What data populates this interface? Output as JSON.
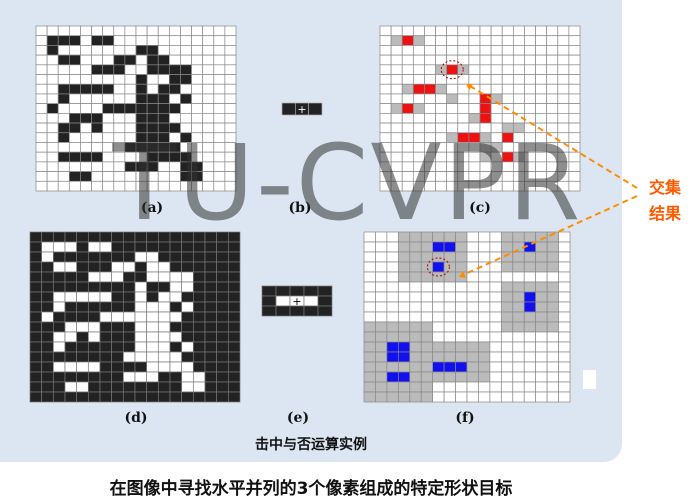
{
  "labels": {
    "a": "(a)",
    "b": "(b)",
    "c": "(c)",
    "d": "(d)",
    "e": "(e)",
    "f": "(f)"
  },
  "caption": "击中与否运算实例",
  "title": "在图像中寻找水平并列的3个像素组成的特定形状目标",
  "annotation": {
    "line1": "交集",
    "line2": "结果"
  },
  "watermark": "TU-CVPR",
  "colors": {
    "foreground": "#222222",
    "hit": "#ee1111",
    "hit_blue": "#1111ee",
    "gray_region": "#bbbbbb",
    "grid": "#888888",
    "accent": "#ff8c00"
  },
  "grids": {
    "a": {
      "cols": 18,
      "rows": 17,
      "fg": [
        [
          1,
          1
        ],
        [
          1,
          2
        ],
        [
          1,
          3
        ],
        [
          1,
          5
        ],
        [
          1,
          6
        ],
        [
          2,
          1
        ],
        [
          2,
          9
        ],
        [
          2,
          10
        ],
        [
          3,
          2
        ],
        [
          3,
          3
        ],
        [
          3,
          7
        ],
        [
          3,
          8
        ],
        [
          3,
          10
        ],
        [
          3,
          11
        ],
        [
          4,
          5
        ],
        [
          4,
          6
        ],
        [
          4,
          7
        ],
        [
          4,
          10
        ],
        [
          4,
          11
        ],
        [
          4,
          12
        ],
        [
          4,
          13
        ],
        [
          5,
          9
        ],
        [
          5,
          12
        ],
        [
          5,
          13
        ],
        [
          6,
          2
        ],
        [
          6,
          3
        ],
        [
          6,
          4
        ],
        [
          6,
          5
        ],
        [
          6,
          6
        ],
        [
          6,
          9
        ],
        [
          6,
          11
        ],
        [
          6,
          12
        ],
        [
          7,
          2
        ],
        [
          7,
          9
        ],
        [
          7,
          10
        ],
        [
          7,
          11
        ],
        [
          7,
          13
        ],
        [
          8,
          1
        ],
        [
          8,
          6
        ],
        [
          8,
          7
        ],
        [
          8,
          8
        ],
        [
          8,
          9
        ],
        [
          8,
          10
        ],
        [
          8,
          11
        ],
        [
          8,
          12
        ],
        [
          9,
          3
        ],
        [
          9,
          4
        ],
        [
          9,
          5
        ],
        [
          9,
          9
        ],
        [
          9,
          10
        ],
        [
          9,
          11
        ],
        [
          10,
          2
        ],
        [
          10,
          3
        ],
        [
          10,
          5
        ],
        [
          10,
          9
        ],
        [
          10,
          10
        ],
        [
          10,
          11
        ],
        [
          10,
          12
        ],
        [
          11,
          2
        ],
        [
          11,
          9
        ],
        [
          11,
          10
        ],
        [
          11,
          11
        ],
        [
          11,
          13
        ],
        [
          12,
          8
        ],
        [
          12,
          9
        ],
        [
          12,
          10
        ],
        [
          12,
          11
        ],
        [
          12,
          12
        ],
        [
          13,
          2
        ],
        [
          13,
          3
        ],
        [
          13,
          4
        ],
        [
          13,
          5
        ],
        [
          13,
          10
        ],
        [
          13,
          11
        ],
        [
          13,
          12
        ],
        [
          13,
          13
        ],
        [
          14,
          8
        ],
        [
          14,
          9
        ],
        [
          14,
          10
        ],
        [
          14,
          13
        ],
        [
          14,
          14
        ],
        [
          15,
          3
        ],
        [
          15,
          4
        ],
        [
          15,
          13
        ],
        [
          15,
          14
        ]
      ]
    },
    "c": {
      "cols": 18,
      "rows": 17,
      "gray": [
        [
          1,
          1
        ],
        [
          1,
          3
        ],
        [
          4,
          5
        ],
        [
          4,
          7
        ],
        [
          6,
          2
        ],
        [
          6,
          5
        ],
        [
          7,
          6
        ],
        [
          7,
          10
        ],
        [
          8,
          1
        ],
        [
          8,
          3
        ],
        [
          9,
          8
        ],
        [
          9,
          9
        ],
        [
          10,
          11
        ],
        [
          10,
          12
        ],
        [
          11,
          6
        ],
        [
          11,
          9
        ],
        [
          12,
          9
        ],
        [
          12,
          10
        ],
        [
          13,
          9
        ],
        [
          13,
          12
        ]
      ],
      "red": [
        [
          1,
          2
        ],
        [
          4,
          6
        ],
        [
          6,
          3
        ],
        [
          6,
          4
        ],
        [
          7,
          9
        ],
        [
          8,
          9
        ],
        [
          8,
          2
        ],
        [
          9,
          9
        ],
        [
          11,
          7
        ],
        [
          11,
          8
        ],
        [
          11,
          11
        ],
        [
          13,
          11
        ]
      ],
      "circle": [
        4,
        6
      ]
    },
    "d": {
      "cols": 18,
      "rows": 17
    },
    "f": {
      "cols": 18,
      "rows": 17,
      "gray": [
        [
          0,
          4
        ],
        [
          0,
          9
        ],
        [
          0,
          12
        ],
        [
          0,
          15
        ],
        [
          4,
          4
        ],
        [
          4,
          9
        ],
        [
          5,
          12
        ],
        [
          5,
          15
        ],
        [
          8,
          12
        ],
        [
          8,
          16
        ],
        [
          11,
          0
        ],
        [
          11,
          6
        ],
        [
          15,
          0
        ],
        [
          15,
          6
        ],
        [
          11,
          6
        ],
        [
          11,
          11
        ],
        [
          14,
          6
        ],
        [
          14,
          11
        ]
      ],
      "blue": [
        [
          1,
          6
        ],
        [
          1,
          7
        ],
        [
          3,
          6
        ],
        [
          1,
          14
        ],
        [
          6,
          14
        ],
        [
          7,
          14
        ],
        [
          11,
          2
        ],
        [
          11,
          3
        ],
        [
          12,
          2
        ],
        [
          12,
          3
        ],
        [
          14,
          2
        ],
        [
          14,
          3
        ],
        [
          13,
          6
        ],
        [
          13,
          7
        ],
        [
          13,
          8
        ]
      ],
      "circle": [
        3,
        6
      ]
    },
    "b_se": {
      "cols": 3,
      "rows": 1
    },
    "e_se": {
      "cols": 5,
      "rows": 3
    }
  }
}
